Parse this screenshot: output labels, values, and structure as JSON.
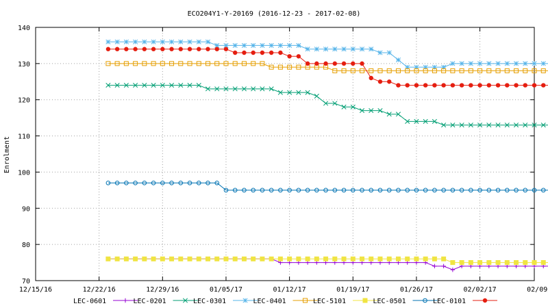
{
  "chart_data": {
    "type": "line",
    "title": "ECO204Y1-Y-20169 (2016-12-23 - 2017-02-08)",
    "xlabel": "",
    "ylabel": "Enrolment",
    "xlim": [
      0,
      55
    ],
    "ylim": [
      70,
      140
    ],
    "grid": true,
    "legend_position": "bottom",
    "x_ticks": [
      {
        "x": 0,
        "label": "12/15/16"
      },
      {
        "x": 7,
        "label": "12/22/16"
      },
      {
        "x": 14,
        "label": "12/29/16"
      },
      {
        "x": 21,
        "label": "01/05/17"
      },
      {
        "x": 28,
        "label": "01/12/17"
      },
      {
        "x": 35,
        "label": "01/19/17"
      },
      {
        "x": 42,
        "label": "01/26/17"
      },
      {
        "x": 49,
        "label": "02/02/17"
      },
      {
        "x": 56,
        "label": "02/09/17"
      }
    ],
    "y_ticks": [
      70,
      80,
      90,
      100,
      110,
      120,
      130,
      140
    ],
    "x_start": 8,
    "series": [
      {
        "name": "LEC-0601",
        "color": "#9400d3",
        "marker": "plus",
        "values": [
          76,
          76,
          76,
          76,
          76,
          76,
          76,
          76,
          76,
          76,
          76,
          76,
          76,
          76,
          76,
          76,
          76,
          76,
          76,
          75,
          75,
          75,
          75,
          75,
          75,
          75,
          75,
          75,
          75,
          75,
          75,
          75,
          75,
          75,
          75,
          75,
          74,
          74,
          73,
          74,
          74,
          74,
          74,
          74,
          74,
          74,
          74,
          74,
          74,
          74,
          74,
          74,
          74,
          74,
          73,
          73,
          73
        ]
      },
      {
        "name": "LEC-0201",
        "color": "#009e73",
        "marker": "x",
        "values": [
          124,
          124,
          124,
          124,
          124,
          124,
          124,
          124,
          124,
          124,
          124,
          123,
          123,
          123,
          123,
          123,
          123,
          123,
          123,
          122,
          122,
          122,
          122,
          121,
          119,
          119,
          118,
          118,
          117,
          117,
          117,
          116,
          116,
          114,
          114,
          114,
          114,
          113,
          113,
          113,
          113,
          113,
          113,
          113,
          113,
          113,
          113,
          113,
          113,
          113,
          113,
          113,
          113,
          113,
          113,
          113,
          113
        ]
      },
      {
        "name": "LEC-0301",
        "color": "#56b4e9",
        "marker": "star",
        "values": [
          136,
          136,
          136,
          136,
          136,
          136,
          136,
          136,
          136,
          136,
          136,
          136,
          135,
          135,
          135,
          135,
          135,
          135,
          135,
          135,
          135,
          135,
          134,
          134,
          134,
          134,
          134,
          134,
          134,
          134,
          133,
          133,
          131,
          129,
          129,
          129,
          129,
          129,
          130,
          130,
          130,
          130,
          130,
          130,
          130,
          130,
          130,
          130,
          130,
          130,
          130,
          130,
          130,
          130,
          129,
          129,
          129
        ]
      },
      {
        "name": "LEC-0401",
        "color": "#e69f00",
        "marker": "square-open",
        "values": [
          130,
          130,
          130,
          130,
          130,
          130,
          130,
          130,
          130,
          130,
          130,
          130,
          130,
          130,
          130,
          130,
          130,
          130,
          129,
          129,
          129,
          129,
          129,
          129,
          129,
          128,
          128,
          128,
          128,
          128,
          128,
          128,
          128,
          128,
          128,
          128,
          128,
          128,
          128,
          128,
          128,
          128,
          128,
          128,
          128,
          128,
          128,
          128,
          128,
          128,
          128,
          128,
          128,
          128,
          128,
          128,
          128
        ]
      },
      {
        "name": "LEC-5101",
        "color": "#f0e442",
        "marker": "square-filled",
        "values": [
          76,
          76,
          76,
          76,
          76,
          76,
          76,
          76,
          76,
          76,
          76,
          76,
          76,
          76,
          76,
          76,
          76,
          76,
          76,
          76,
          76,
          76,
          76,
          76,
          76,
          76,
          76,
          76,
          76,
          76,
          76,
          76,
          76,
          76,
          76,
          76,
          76,
          76,
          75,
          75,
          75,
          75,
          75,
          75,
          75,
          75,
          75,
          75,
          75,
          75,
          75,
          75,
          75,
          75,
          75,
          75,
          75
        ]
      },
      {
        "name": "LEC-0501",
        "color": "#0072b2",
        "marker": "circle-open",
        "values": [
          97,
          97,
          97,
          97,
          97,
          97,
          97,
          97,
          97,
          97,
          97,
          97,
          97,
          95,
          95,
          95,
          95,
          95,
          95,
          95,
          95,
          95,
          95,
          95,
          95,
          95,
          95,
          95,
          95,
          95,
          95,
          95,
          95,
          95,
          95,
          95,
          95,
          95,
          95,
          95,
          95,
          95,
          95,
          95,
          95,
          95,
          95,
          95,
          95,
          95,
          95,
          95,
          95,
          95,
          95,
          95,
          95
        ]
      },
      {
        "name": "LEC-0101",
        "color": "#e51e10",
        "marker": "circle-filled",
        "values": [
          134,
          134,
          134,
          134,
          134,
          134,
          134,
          134,
          134,
          134,
          134,
          134,
          134,
          134,
          133,
          133,
          133,
          133,
          133,
          133,
          132,
          132,
          130,
          130,
          130,
          130,
          130,
          130,
          130,
          126,
          125,
          125,
          124,
          124,
          124,
          124,
          124,
          124,
          124,
          124,
          124,
          124,
          124,
          124,
          124,
          124,
          124,
          124,
          124,
          124,
          124,
          124,
          124,
          124,
          124,
          124,
          124
        ]
      }
    ]
  }
}
